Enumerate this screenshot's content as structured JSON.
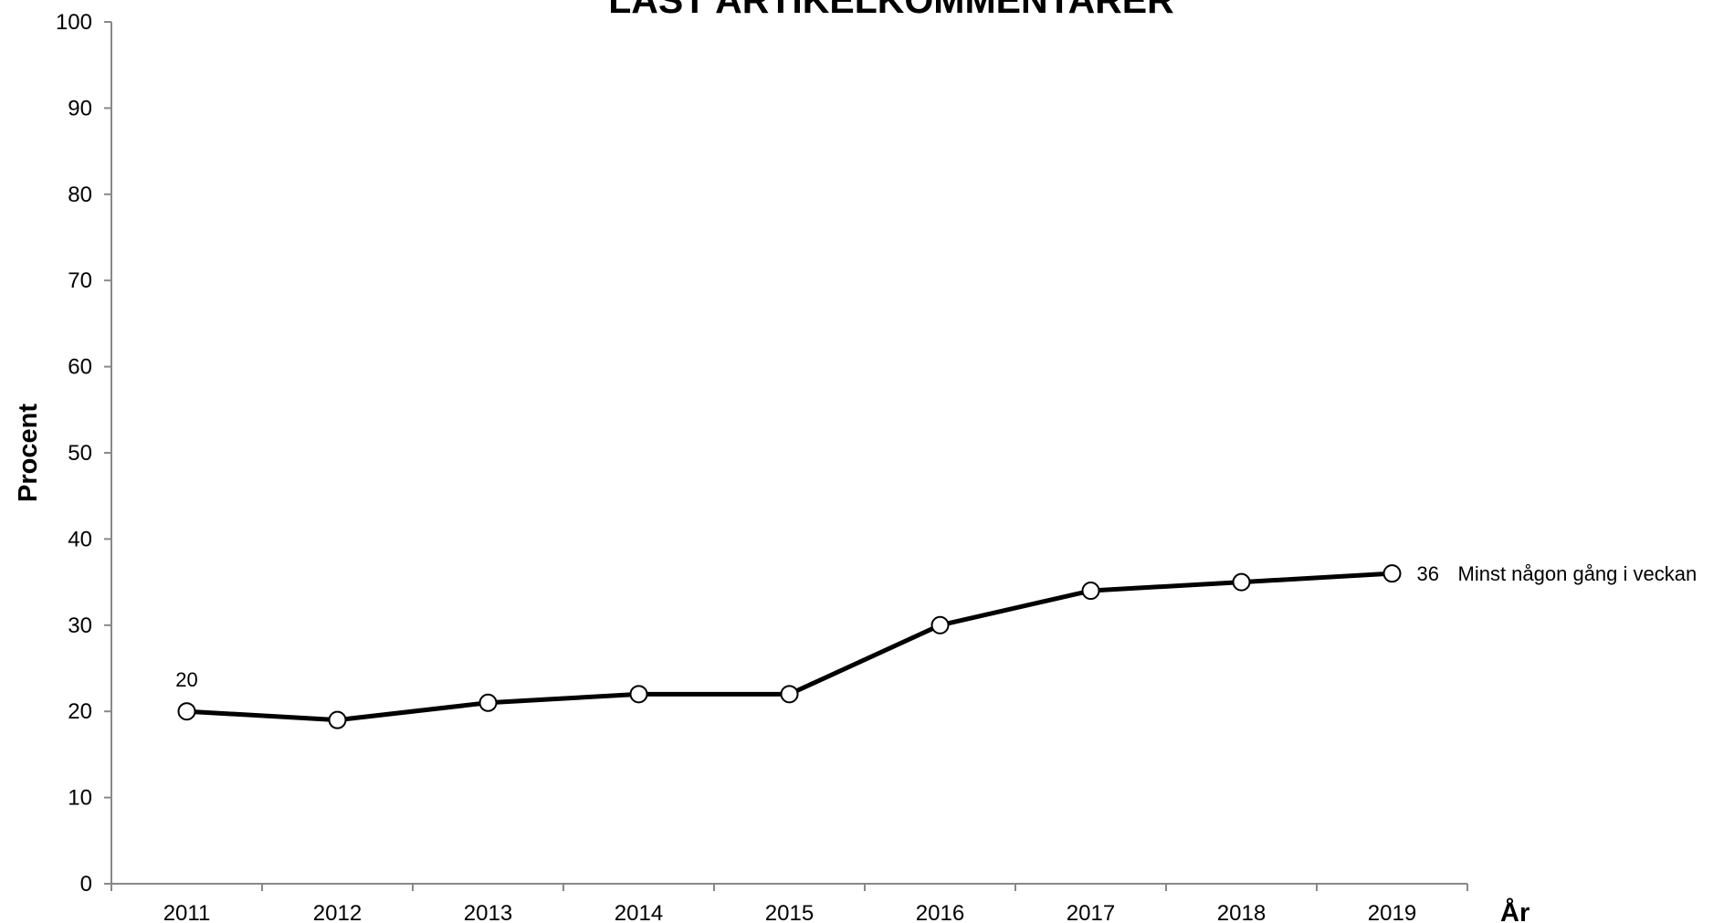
{
  "chart_data": {
    "type": "line",
    "title": "LÄST ARTIKELKOMMENTARER",
    "xlabel": "År",
    "ylabel": "Procent",
    "ylim": [
      0,
      100
    ],
    "yticks": [
      0,
      10,
      20,
      30,
      40,
      50,
      60,
      70,
      80,
      90,
      100
    ],
    "categories": [
      "2011",
      "2012",
      "2013",
      "2014",
      "2015",
      "2016",
      "2017",
      "2018",
      "2019"
    ],
    "grid": false,
    "series": [
      {
        "name": "Minst någon gång i veckan",
        "values": [
          20,
          19,
          21,
          22,
          22,
          30,
          34,
          35,
          36
        ],
        "color": "#000000",
        "marker": "open-circle",
        "data_labels": [
          {
            "index": 0,
            "text": "20"
          },
          {
            "index": 8,
            "text": "36"
          }
        ]
      }
    ]
  }
}
